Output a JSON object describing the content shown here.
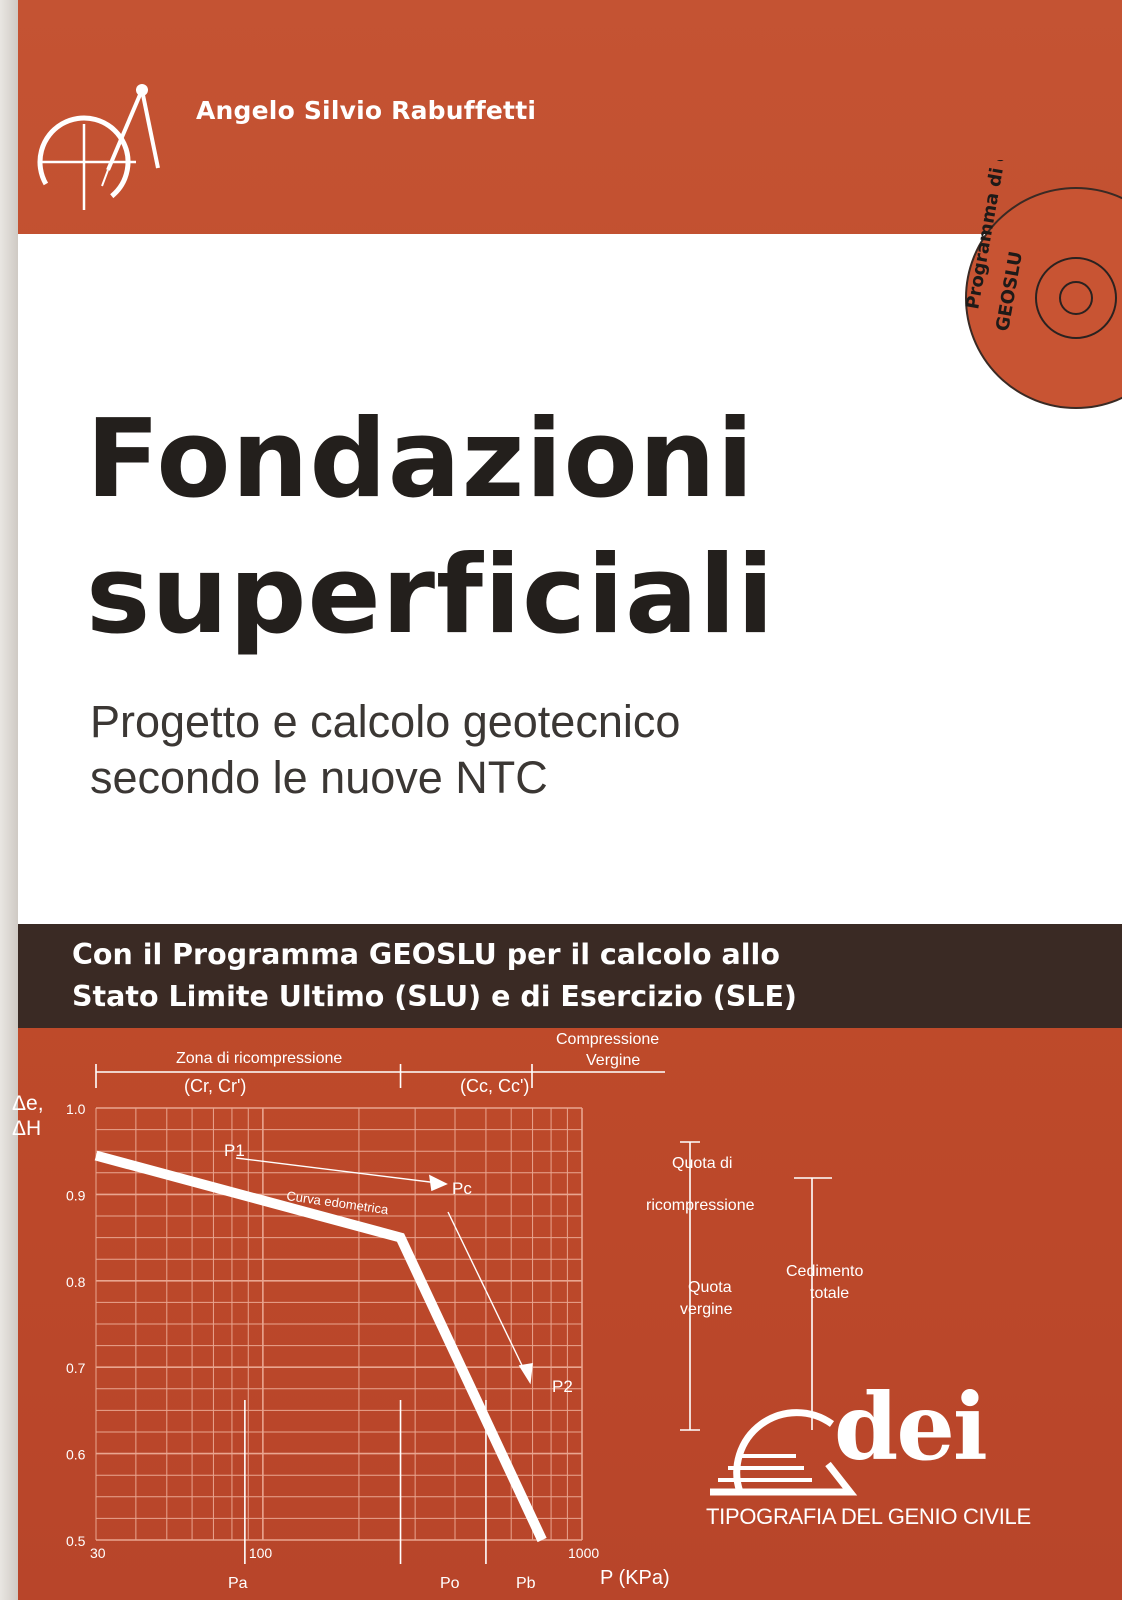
{
  "cover": {
    "author": "Angelo Silvio Rabuffetti",
    "title_line1": "Fondazioni",
    "title_line2": "superficiali",
    "subtitle_line1": "Progetto e calcolo geotecnico",
    "subtitle_line2": "secondo le nuove NTC",
    "promo_line1": "Con il Programma GEOSLU per il calcolo allo",
    "promo_line2": "Stato Limite Ultimo (SLU) e di Esercizio (SLE)",
    "cd_line1": "Programma di calcolo",
    "cd_line2": "GEOSLU",
    "publisher_logo": "dei",
    "publisher_tagline": "TIPOGRAFIA DEL GENIO CIVILE",
    "colors": {
      "cover_red": "#c24e2c",
      "dark_band": "#3a2a24",
      "white": "#ffffff",
      "title_text": "#231f1c",
      "grid_lines": "#e9a58f"
    }
  },
  "chart_data": {
    "type": "line",
    "xscale": "log",
    "xlim": [
      30,
      1000
    ],
    "ylim": [
      0.5,
      1.0
    ],
    "x_ticks": [
      "30",
      "100",
      "1000"
    ],
    "y_ticks": [
      "1.0",
      "0.9",
      "0.8",
      "0.7",
      "0.6",
      "0.5"
    ],
    "ylabel_line1": "Δe,",
    "ylabel_line2": "ΔH",
    "xlabel": "P (KPa)",
    "series": [
      {
        "name": "Curva edometrica",
        "x": [
          30,
          270,
          750
        ],
        "y": [
          0.945,
          0.85,
          0.5
        ]
      }
    ],
    "point_labels": {
      "p1": "P1",
      "pc": "Pc",
      "p2": "P2"
    },
    "axis_markers": {
      "pa": "Pa",
      "po": "Po",
      "pb": "Pb"
    },
    "zones": {
      "recompression_title": "Zona di ricompressione",
      "recompression_coeffs": "(Cr, Cr')",
      "virgin_title_line1": "Compressione",
      "virgin_title_line2": "Vergine",
      "virgin_coeffs": "(Cc, Cc')"
    },
    "settlement": {
      "quota_ric_line1": "Quota di",
      "quota_ric_line2": "ricompressione",
      "quota_verg_line1": "Quota",
      "quota_verg_line2": "vergine",
      "total_line1": "Cedimento",
      "total_line2": "totale"
    }
  }
}
